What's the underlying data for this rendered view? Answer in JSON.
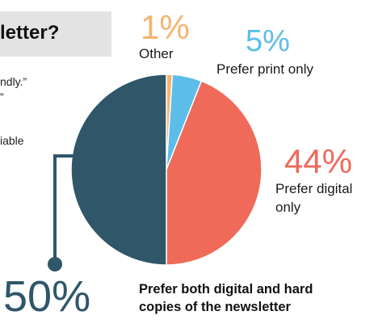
{
  "header": {
    "title_fragment": "letter?",
    "side_lines": [
      "ndly.”",
      "”",
      "iable"
    ]
  },
  "chart_data": {
    "type": "pie",
    "title": "",
    "slices": [
      {
        "label": "Other",
        "value": 1,
        "display": "1%",
        "color": "#f5b46f"
      },
      {
        "label": "Prefer print only",
        "value": 5,
        "display": "5%",
        "color": "#5dbde9"
      },
      {
        "label": "Prefer digital only",
        "value": 44,
        "display": "44%",
        "color": "#ef6a59"
      },
      {
        "label": "Prefer both digital and hard copies of the newsletter",
        "value": 50,
        "display": "50%",
        "color": "#2f5669"
      }
    ],
    "label_lines": {
      "digital": [
        "Prefer digital",
        "only"
      ],
      "both": [
        "Prefer both digital and hard",
        "copies of the newsletter"
      ]
    },
    "leader_color": "#2f5669"
  }
}
